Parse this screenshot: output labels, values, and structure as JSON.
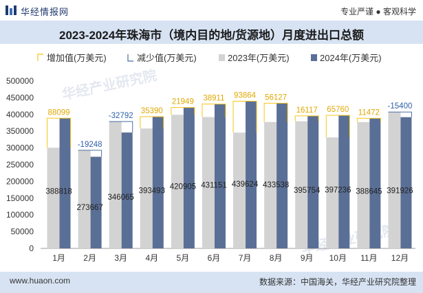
{
  "header": {
    "logo_text": "华经情报网",
    "slogan": "专业严谨 ● 客观科学",
    "title": "2023-2024年珠海市（境内目的地/货源地）月度进出口总额"
  },
  "footer": {
    "url": "www.huaon.com",
    "source": "数据来源：中国海关，华经产业研究院整理"
  },
  "watermark": "华经产业研究院",
  "colors": {
    "increase": "#f5c518",
    "decrease": "#4a6fa5",
    "y2023": "#d3d3d3",
    "y2024": "#5a6f96",
    "title_bg": "#d7e3f3",
    "label_blue": "#2e5fa8"
  },
  "chart_data": {
    "type": "bar",
    "title": "2023-2024年珠海市（境内目的地/货源地）月度进出口总额",
    "categories": [
      "1月",
      "2月",
      "3月",
      "4月",
      "5月",
      "6月",
      "7月",
      "8月",
      "9月",
      "10月",
      "11月",
      "12月"
    ],
    "series": [
      {
        "name": "2023年(万美元)",
        "values": [
          300719,
          292915,
          378857,
          358103,
          398956,
          392240,
          345760,
          377411,
          379637,
          331476,
          377173,
          407326
        ]
      },
      {
        "name": "2024年(万美元)",
        "values": [
          388818,
          273667,
          346065,
          393493,
          420905,
          431151,
          439624,
          433538,
          395754,
          397236,
          388645,
          391926
        ]
      }
    ],
    "changes": [
      88099,
      -19248,
      -32792,
      35390,
      21949,
      38911,
      93864,
      56127,
      16117,
      65760,
      11472,
      -15400
    ],
    "change_labels": [
      "88099",
      "-19248",
      "-32792",
      "35390",
      "21949",
      "38911",
      "93864",
      "56127",
      "16117",
      "65760",
      "11472",
      "-15400"
    ],
    "value_labels_2024": [
      "388818",
      "273667",
      "346065",
      "393493",
      "420905",
      "431151",
      "439624",
      "433538",
      "395754",
      "397236",
      "388645",
      "391926"
    ],
    "legend": [
      "增加值(万美元)",
      "减少值(万美元)",
      "2023年(万美元)",
      "2024年(万美元)"
    ],
    "yticks": [
      "0",
      "50000",
      "100000",
      "150000",
      "200000",
      "250000",
      "300000",
      "350000",
      "400000",
      "450000",
      "500000"
    ],
    "ylim": [
      0,
      500000
    ]
  }
}
